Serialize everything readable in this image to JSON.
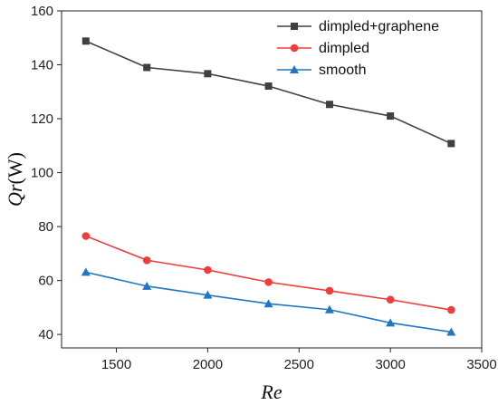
{
  "chart_data": {
    "type": "line",
    "title": "",
    "xlabel": "Re",
    "ylabel": {
      "italic": "Qr",
      "unit": "(W)"
    },
    "xlim": [
      1200,
      3500
    ],
    "ylim": [
      35,
      160
    ],
    "xticks": [
      1500,
      2000,
      2500,
      3000,
      3500
    ],
    "yticks": [
      40,
      60,
      80,
      100,
      120,
      140,
      160
    ],
    "grid": false,
    "legend_position": "top-right",
    "x": [
      1333,
      1667,
      2000,
      2333,
      2667,
      3000,
      3333
    ],
    "series": [
      {
        "name": "dimpled+graphene",
        "color": "#404040",
        "marker": "square",
        "values": [
          148.8,
          139.0,
          136.7,
          132.1,
          125.3,
          121.0,
          110.8
        ]
      },
      {
        "name": "dimpled",
        "color": "#f03c3c",
        "marker": "circle",
        "values": [
          76.5,
          67.5,
          63.9,
          59.4,
          56.2,
          52.9,
          49.1
        ]
      },
      {
        "name": "smooth",
        "color": "#1f77c4",
        "marker": "triangle",
        "values": [
          63.1,
          57.9,
          54.6,
          51.4,
          49.2,
          44.3,
          40.9
        ]
      }
    ]
  }
}
